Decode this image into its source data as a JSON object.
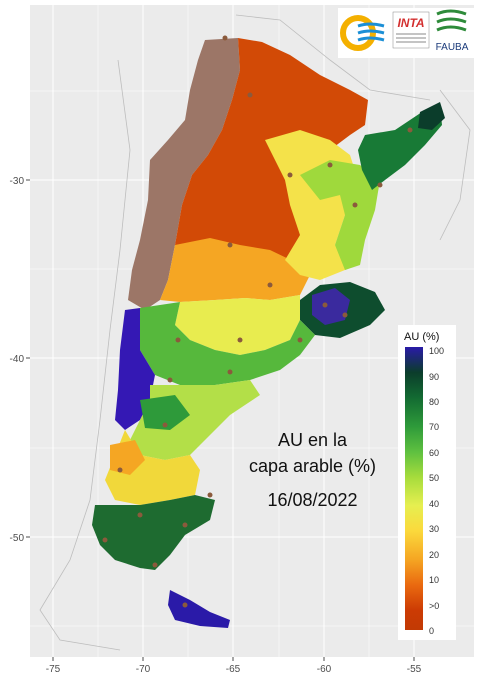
{
  "title": {
    "line1": "AU en la",
    "line2": "capa arable (%)",
    "date": "16/08/2022"
  },
  "logos": {
    "inta": "INTA",
    "fauba": "FAUBA"
  },
  "axes": {
    "x_ticks": [
      "-75",
      "-70",
      "-65",
      "-60",
      "-55"
    ],
    "y_ticks": [
      "-30",
      "-40",
      "-50"
    ]
  },
  "legend": {
    "title": "AU (%)",
    "labels": [
      "100",
      "90",
      "80",
      "70",
      "60",
      "50",
      "40",
      "30",
      "20",
      "10",
      ">0",
      "0"
    ],
    "colors": [
      "#2a1aa8",
      "#0b3d2b",
      "#136b32",
      "#2e9a3a",
      "#5ec040",
      "#a6dc3c",
      "#e6ef50",
      "#fbd93c",
      "#f5a623",
      "#ea6a10",
      "#cc3b04",
      "#a0522d"
    ]
  },
  "colors": {
    "panel_bg": "#ebebeb",
    "grid": "#ffffff",
    "no_data": "#9c7667",
    "country_outline": "#bdbdbd"
  }
}
